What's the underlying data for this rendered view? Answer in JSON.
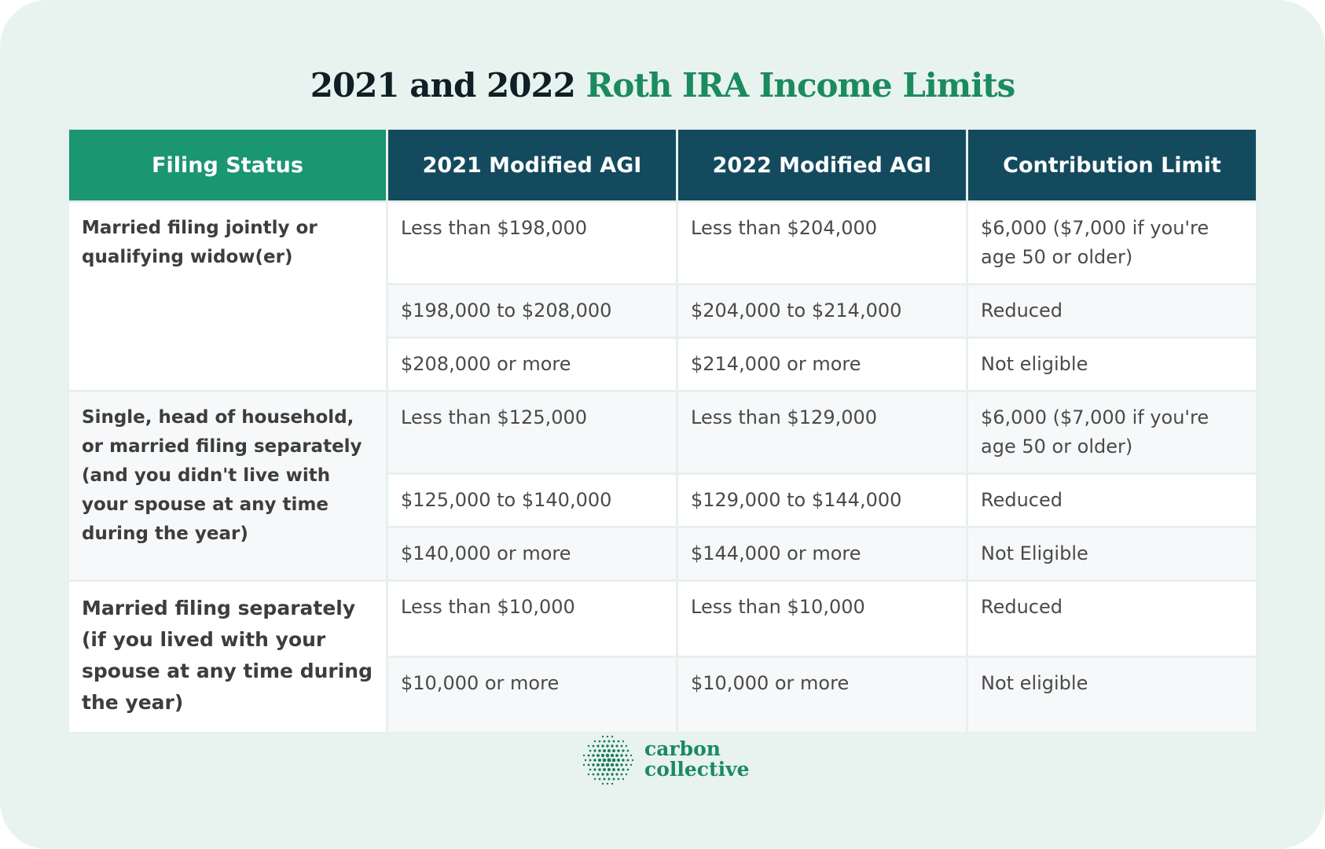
{
  "header": {
    "title_lead": "2021 and 2022",
    "title_accent": "Roth IRA Income Limits"
  },
  "table": {
    "headers": [
      "Filing Status",
      "2021 Modified AGI",
      "2022 Modified AGI",
      "Contribution Limit"
    ],
    "groups": [
      {
        "status": "Married filing jointly or qualifying widow(er)",
        "rows": [
          [
            "Less than $198,000",
            "Less than $204,000",
            "$6,000 ($7,000 if you're age 50 or older)"
          ],
          [
            "$198,000 to $208,000",
            "$204,000 to $214,000",
            "Reduced"
          ],
          [
            "$208,000 or more",
            "$214,000 or more",
            "Not eligible"
          ]
        ]
      },
      {
        "status": "Single, head of household, or married filing separately (and you didn't live with your spouse at any time during the year)",
        "rows": [
          [
            "Less than $125,000",
            "Less than $129,000",
            "$6,000 ($7,000 if you're age 50 or older)"
          ],
          [
            "$125,000 to $140,000",
            "$129,000 to $144,000",
            "Reduced"
          ],
          [
            "$140,000 or more",
            "$144,000 or more",
            "Not Eligible"
          ]
        ]
      },
      {
        "status": "Married filing separately (if you lived with your spouse at any time during the year)",
        "rows": [
          [
            "Less than $10,000",
            "Less than $10,000",
            "Reduced"
          ],
          [
            "$10,000 or more",
            "$10,000 or more",
            "Not eligible"
          ]
        ]
      }
    ]
  },
  "logo": {
    "line1": "carbon",
    "line2": "collective"
  }
}
